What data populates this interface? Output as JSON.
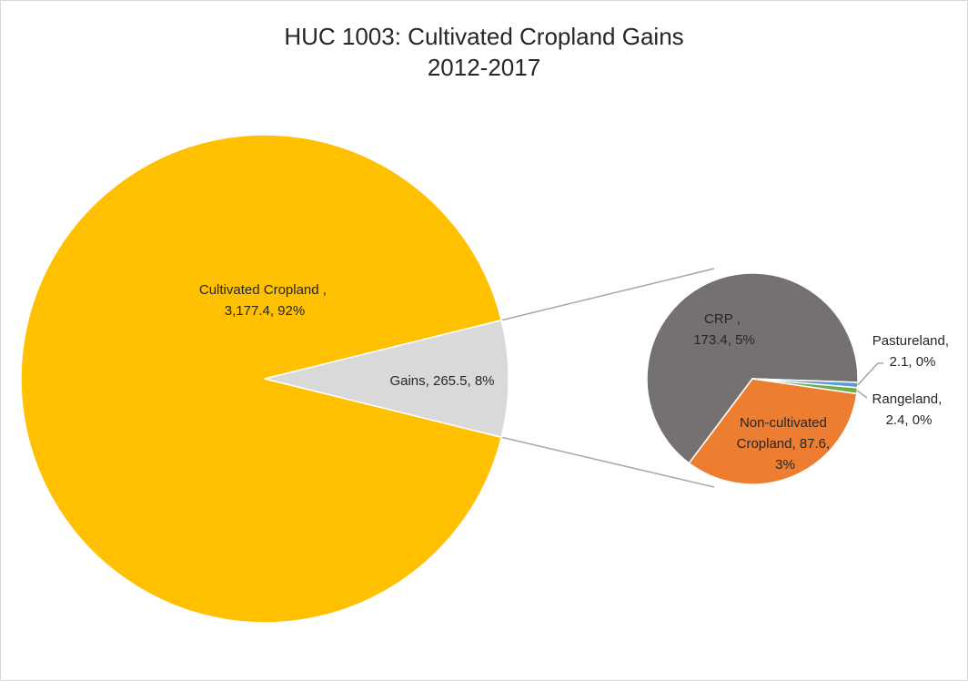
{
  "chart_data": {
    "type": "pie",
    "title": "HUC 1003: Cultivated Cropland Gains",
    "subtitle": "2012-2017",
    "main_pie": [
      {
        "name": "Cultivated Cropland ,",
        "value": 3177.4,
        "value_label": "3,177.4",
        "percent_label": "92%",
        "color": "#FFC000"
      },
      {
        "name": "Gains",
        "value": 265.5,
        "value_label": "265.5",
        "percent_label": "8%",
        "color": "#D9D9D9"
      }
    ],
    "secondary_pie": [
      {
        "name": "CRP ,",
        "value": 173.4,
        "value_label": "173.4",
        "percent_label": "5%",
        "color": "#767171"
      },
      {
        "name": "Pastureland,",
        "value": 2.1,
        "value_label": "2.1",
        "percent_label": "0%",
        "color": "#5B9BD5"
      },
      {
        "name": "Rangeland,",
        "value": 2.4,
        "value_label": "2.4",
        "percent_label": "0%",
        "color": "#70AD47"
      },
      {
        "name": "Non-cultivated Cropland,",
        "value": 87.6,
        "value_label": "87.6",
        "percent_label": "3%",
        "color": "#ED7D31"
      }
    ],
    "labels": {
      "cultivated": [
        "Cultivated Cropland ,",
        "3,177.4, 92%"
      ],
      "gains": [
        "Gains, 265.5, 8%"
      ],
      "crp": [
        "CRP ,",
        "173.4, 5%"
      ],
      "pasture": [
        "Pastureland,",
        "2.1, 0%"
      ],
      "range": [
        "Rangeland,",
        "2.4, 0%"
      ],
      "noncult": [
        "Non-cultivated",
        "Cropland, 87.6,",
        "3%"
      ]
    }
  }
}
